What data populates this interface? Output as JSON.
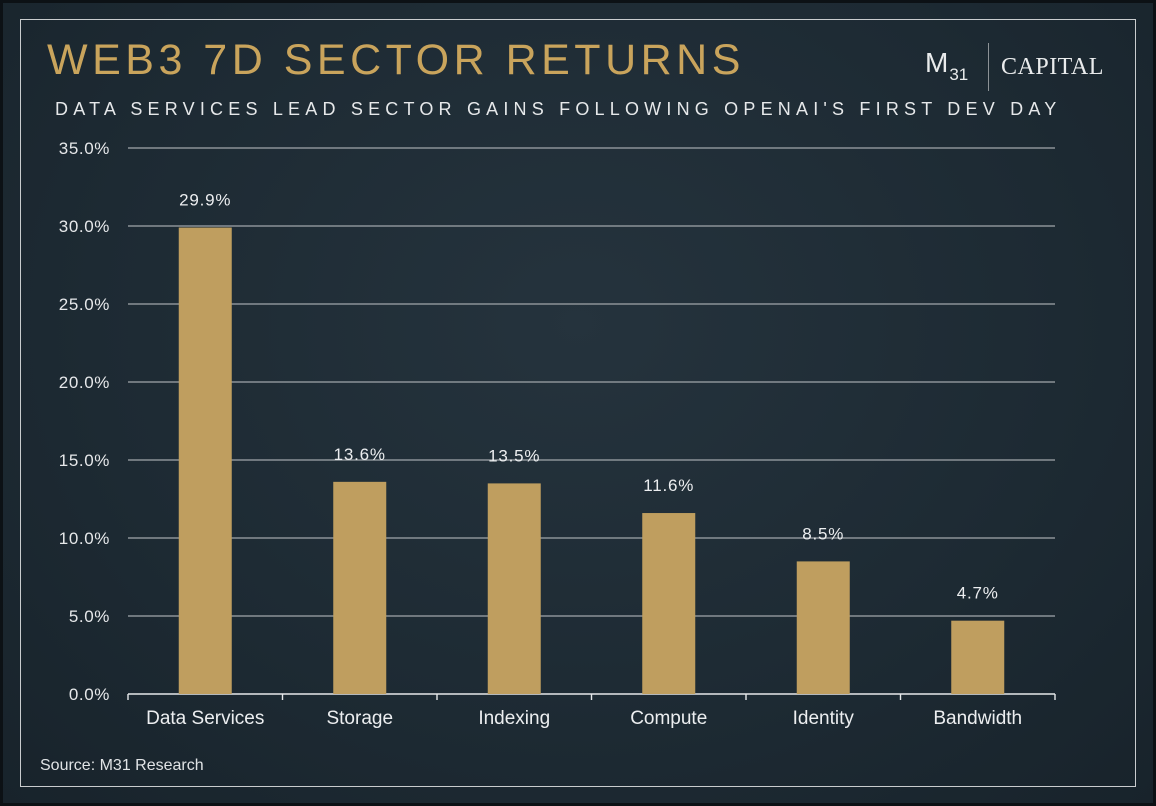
{
  "header": {
    "title": "WEB3 7D SECTOR RETURNS",
    "subtitle": "DATA SERVICES LEAD SECTOR GAINS FOLLOWING OPENAI'S FIRST DEV DAY"
  },
  "logo": {
    "letter": "M",
    "number": "31",
    "word": "CAPITAL"
  },
  "footer": {
    "source": "Source: M31 Research"
  },
  "colors": {
    "bar": "#bf9e5f",
    "title": "#c9a45c",
    "background": "#1d2a33",
    "grid": "#8b9297"
  },
  "chart_data": {
    "type": "bar",
    "title": "WEB3 7D SECTOR RETURNS",
    "subtitle": "DATA SERVICES LEAD SECTOR GAINS FOLLOWING OPENAI'S FIRST DEV DAY",
    "categories": [
      "Data Services",
      "Storage",
      "Indexing",
      "Compute",
      "Identity",
      "Bandwidth"
    ],
    "values": [
      29.9,
      13.6,
      13.5,
      11.6,
      8.5,
      4.7
    ],
    "data_labels": [
      "29.9%",
      "13.6%",
      "13.5%",
      "11.6%",
      "8.5%",
      "4.7%"
    ],
    "ylim": [
      0,
      35
    ],
    "yticks": [
      0,
      5,
      10,
      15,
      20,
      25,
      30,
      35
    ],
    "ytick_labels": [
      "0.0%",
      "5.0%",
      "10.0%",
      "15.0%",
      "20.0%",
      "25.0%",
      "30.0%",
      "35.0%"
    ],
    "xlabel": "",
    "ylabel": "",
    "grid": true,
    "legend": "none"
  }
}
